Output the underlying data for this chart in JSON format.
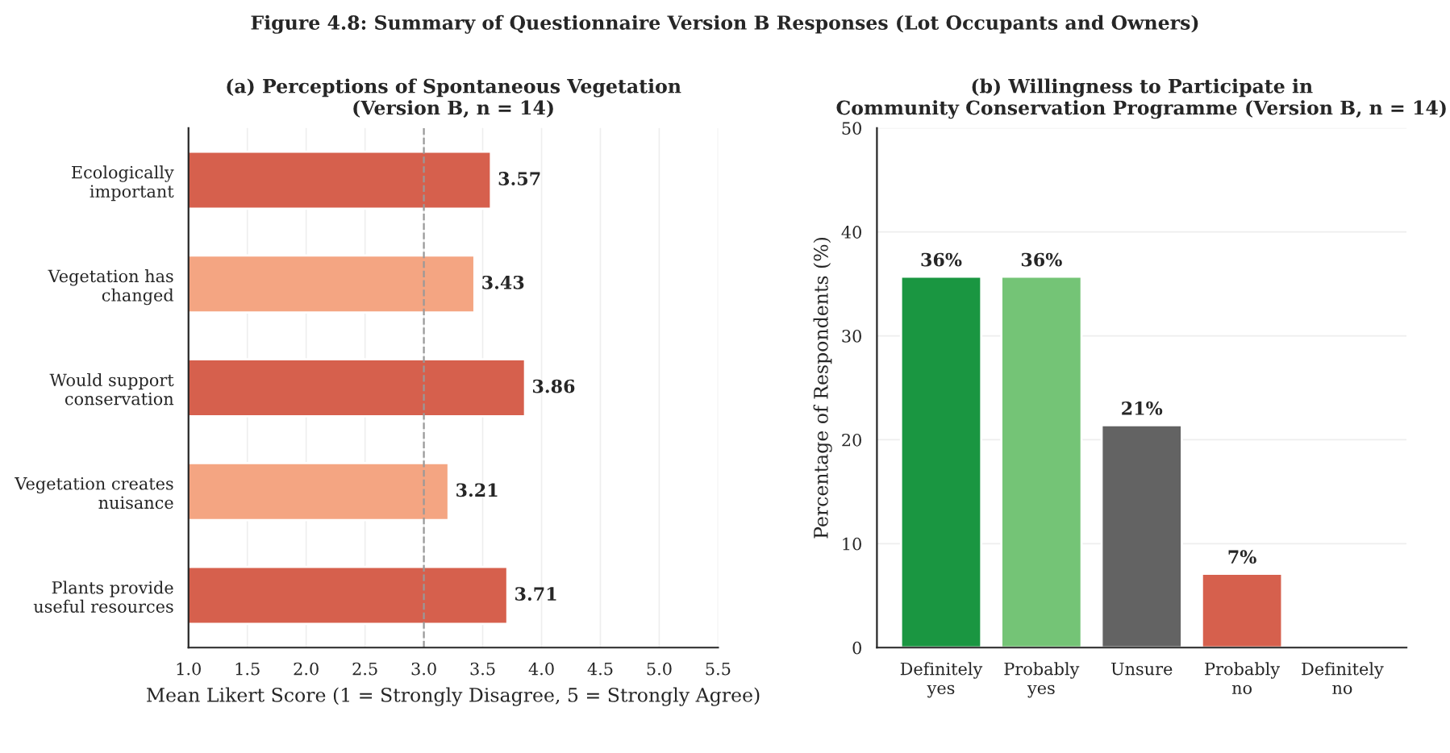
{
  "chart_data": [
    {
      "type": "bar",
      "orientation": "horizontal",
      "title": "(a) Perceptions of Spontaneous Vegetation\n(Version B, n = 14)",
      "xlabel": "Mean Likert Score (1 = Strongly Disagree, 5 = Strongly Agree)",
      "annotations": [
        "Figure 4.8: Summary of Questionnaire Version B Responses (Lot Occupants and Owners)"
      ],
      "categories": [
        "Ecologically\nimportant",
        "Vegetation has\nchanged",
        "Would support\nconservation",
        "Vegetation creates\nnuisance",
        "Plants provide\nuseful resources"
      ],
      "values": [
        3.57,
        3.43,
        3.86,
        3.21,
        3.71
      ],
      "colors": [
        "#d6604d",
        "#f4a582",
        "#d6604d",
        "#f4a582",
        "#d6604d"
      ],
      "xlim": [
        1.0,
        5.5
      ],
      "xticks": [
        {
          "value": 1,
          "label": "1.0"
        },
        1.5,
        {
          "value": 2,
          "label": "2.0"
        },
        2.5,
        {
          "value": 3,
          "label": "3.0"
        },
        3.5,
        {
          "value": 4,
          "label": "4.0"
        },
        4.5,
        {
          "value": 5,
          "label": "5.0"
        },
        5.5
      ],
      "ref_lines": [
        {
          "axis": "x",
          "value": 3.0,
          "color": "#999999",
          "line_style": "dashed"
        }
      ],
      "data_labels": true,
      "grid": "x"
    },
    {
      "type": "bar",
      "title": "(b) Willingness to Participate in\nCommunity Conservation Programme (Version B, n = 14)",
      "ylabel": "Percentage of Respondents (%)",
      "categories": [
        "Definitely\nyes",
        "Probably\nyes",
        "Unsure",
        "Probably\nno",
        "Definitely\nno"
      ],
      "values": [
        35.7,
        35.7,
        21.4,
        7.1,
        0
      ],
      "value_labels": [
        "36%",
        "36%",
        "21%",
        "7%",
        null
      ],
      "colors": [
        "#1a9641",
        "#74c476",
        "#636363",
        "#d6604d",
        null
      ],
      "ylim": [
        0,
        50
      ],
      "yticks": [
        0,
        10,
        20,
        30,
        40,
        50
      ],
      "grid": "y"
    }
  ]
}
